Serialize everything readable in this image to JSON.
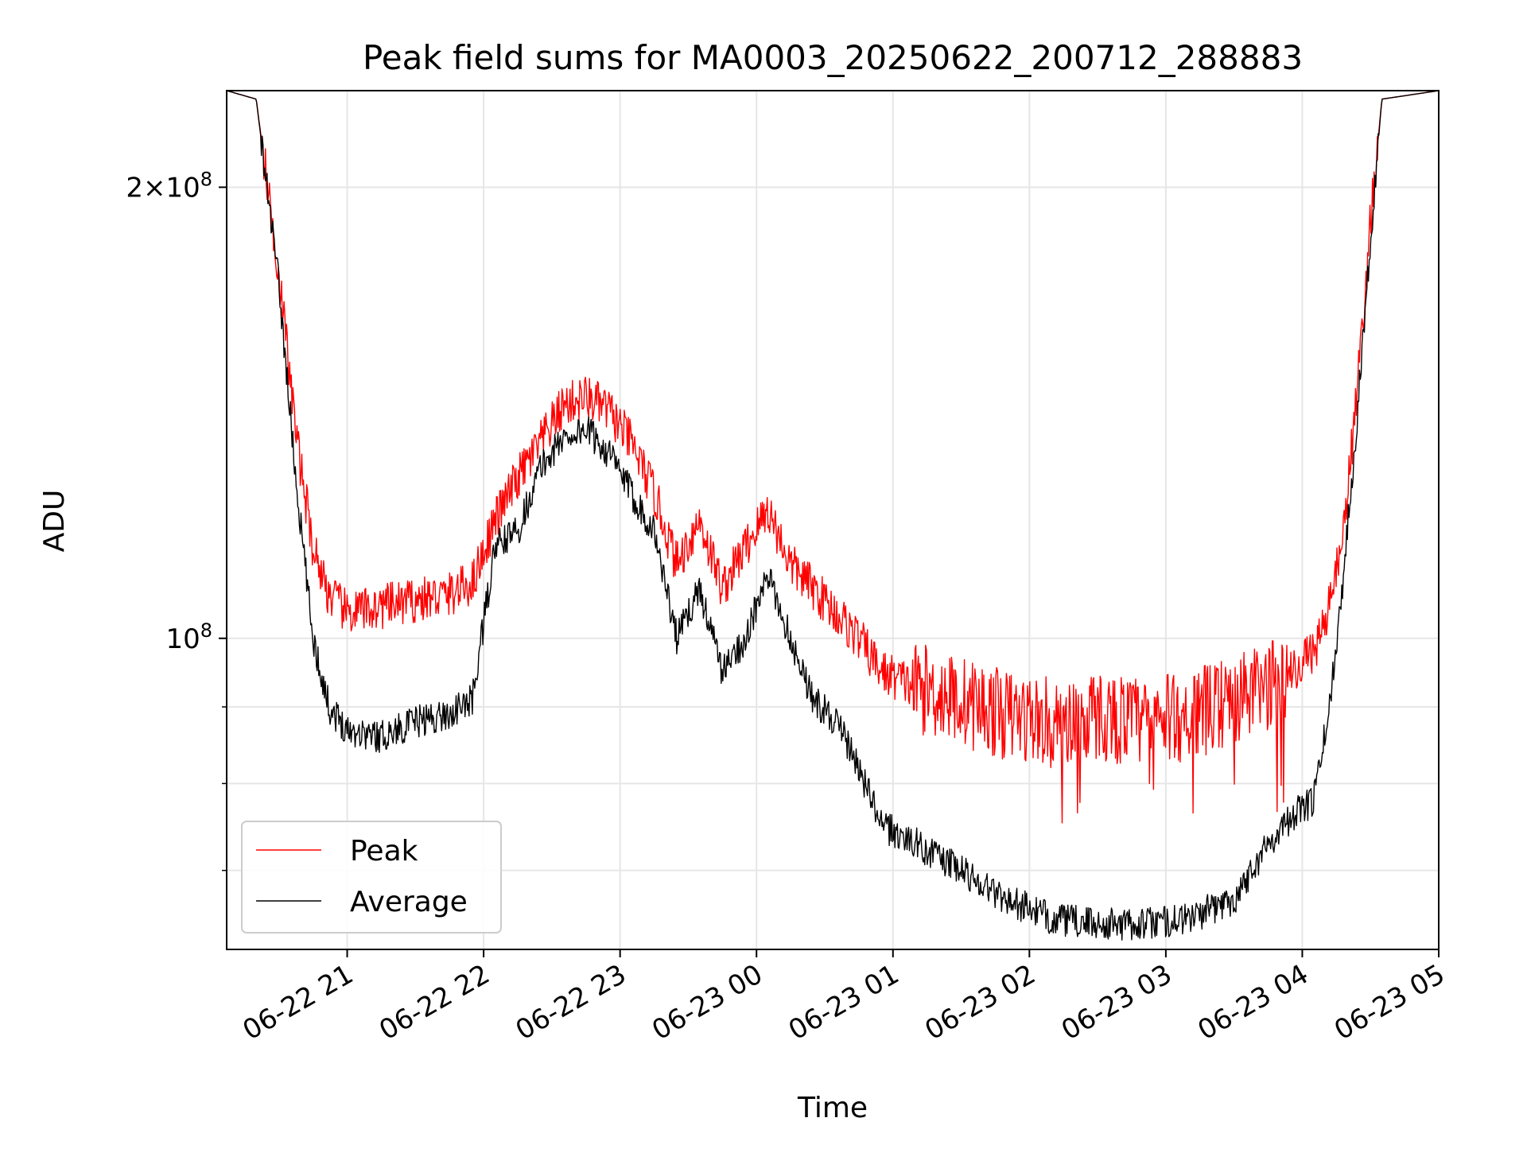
{
  "chart_data": {
    "type": "line",
    "title": "Peak field sums for MA0003_20250622_200712_288883",
    "xlabel": "Time",
    "ylabel": "ADU",
    "y_scale": "log",
    "ylim": [
      62000000,
      232000000
    ],
    "x_range": [
      "06-22 20:07",
      "06-23 05:00"
    ],
    "x_ticks": [
      "06-22 21",
      "06-22 22",
      "06-22 23",
      "06-23 00",
      "06-23 01",
      "06-23 02",
      "06-23 03",
      "06-23 04",
      "06-23 05"
    ],
    "y_major_ticks": [
      {
        "value": 100000000,
        "label_mantissa": "",
        "label_base": "10",
        "label_exp": "8"
      },
      {
        "value": 200000000,
        "label_mantissa": "2×",
        "label_base": "10",
        "label_exp": "8"
      }
    ],
    "y_minor_ticks": [
      70000000,
      80000000,
      90000000
    ],
    "grid": true,
    "legend_position": "lower-left",
    "colors": {
      "peak": "#ff0000",
      "average": "#000000"
    },
    "series": [
      {
        "name": "Peak",
        "color": "#ff0000",
        "x": [
          "06-22 20:07",
          "06-22 20:20",
          "06-22 20:30",
          "06-22 20:38",
          "06-22 20:45",
          "06-22 20:52",
          "06-22 21:00",
          "06-22 21:15",
          "06-22 21:30",
          "06-22 21:45",
          "06-22 21:55",
          "06-22 22:05",
          "06-22 22:15",
          "06-22 22:25",
          "06-22 22:35",
          "06-22 22:45",
          "06-22 22:55",
          "06-22 23:05",
          "06-22 23:15",
          "06-22 23:25",
          "06-22 23:35",
          "06-22 23:45",
          "06-22 23:55",
          "06-23 00:05",
          "06-23 00:15",
          "06-23 00:25",
          "06-23 00:35",
          "06-23 00:45",
          "06-23 00:55",
          "06-23 01:10",
          "06-23 01:30",
          "06-23 01:50",
          "06-23 02:10",
          "06-23 02:30",
          "06-23 02:50",
          "06-23 03:10",
          "06-23 03:30",
          "06-23 03:45",
          "06-23 03:55",
          "06-23 04:05",
          "06-23 04:12",
          "06-23 04:18",
          "06-23 04:24",
          "06-23 04:30",
          "06-23 04:35",
          "06-23 05:00"
        ],
        "values": [
          232000000,
          229000000,
          175000000,
          135000000,
          115000000,
          107000000,
          104000000,
          105000000,
          106000000,
          107000000,
          109000000,
          120000000,
          128000000,
          135000000,
          143000000,
          145000000,
          142000000,
          135000000,
          125000000,
          112000000,
          120000000,
          108000000,
          115000000,
          122000000,
          112000000,
          108000000,
          104000000,
          100000000,
          95000000,
          93000000,
          91000000,
          89000000,
          88000000,
          89000000,
          88000000,
          89000000,
          91000000,
          93000000,
          95000000,
          98000000,
          105000000,
          118000000,
          145000000,
          190000000,
          229000000,
          232000000
        ]
      },
      {
        "name": "Average",
        "color": "#000000",
        "x": [
          "06-22 20:07",
          "06-22 20:20",
          "06-22 20:30",
          "06-22 20:38",
          "06-22 20:45",
          "06-22 20:52",
          "06-22 21:00",
          "06-22 21:15",
          "06-22 21:30",
          "06-22 21:45",
          "06-22 21:55",
          "06-22 22:05",
          "06-22 22:15",
          "06-22 22:25",
          "06-22 22:35",
          "06-22 22:45",
          "06-22 22:55",
          "06-22 23:05",
          "06-22 23:15",
          "06-22 23:25",
          "06-22 23:35",
          "06-22 23:45",
          "06-22 23:55",
          "06-23 00:05",
          "06-23 00:15",
          "06-23 00:25",
          "06-23 00:35",
          "06-23 00:45",
          "06-23 00:55",
          "06-23 01:10",
          "06-23 01:30",
          "06-23 01:50",
          "06-23 02:10",
          "06-23 02:30",
          "06-23 02:50",
          "06-23 03:10",
          "06-23 03:30",
          "06-23 03:45",
          "06-23 03:55",
          "06-23 04:05",
          "06-23 04:12",
          "06-23 04:18",
          "06-23 04:24",
          "06-23 04:30",
          "06-23 04:35",
          "06-23 05:00"
        ],
        "values": [
          232000000,
          229000000,
          172000000,
          125000000,
          100000000,
          90000000,
          87000000,
          86000000,
          88000000,
          89000000,
          91000000,
          115000000,
          118000000,
          130000000,
          136000000,
          138000000,
          133000000,
          125000000,
          118000000,
          100000000,
          108000000,
          95000000,
          100000000,
          110000000,
          100000000,
          91000000,
          88000000,
          82000000,
          75000000,
          73000000,
          70000000,
          67000000,
          65000000,
          64500000,
          64500000,
          65000000,
          67000000,
          73000000,
          76000000,
          78000000,
          90000000,
          110000000,
          140000000,
          185000000,
          229000000,
          232000000
        ]
      }
    ]
  }
}
